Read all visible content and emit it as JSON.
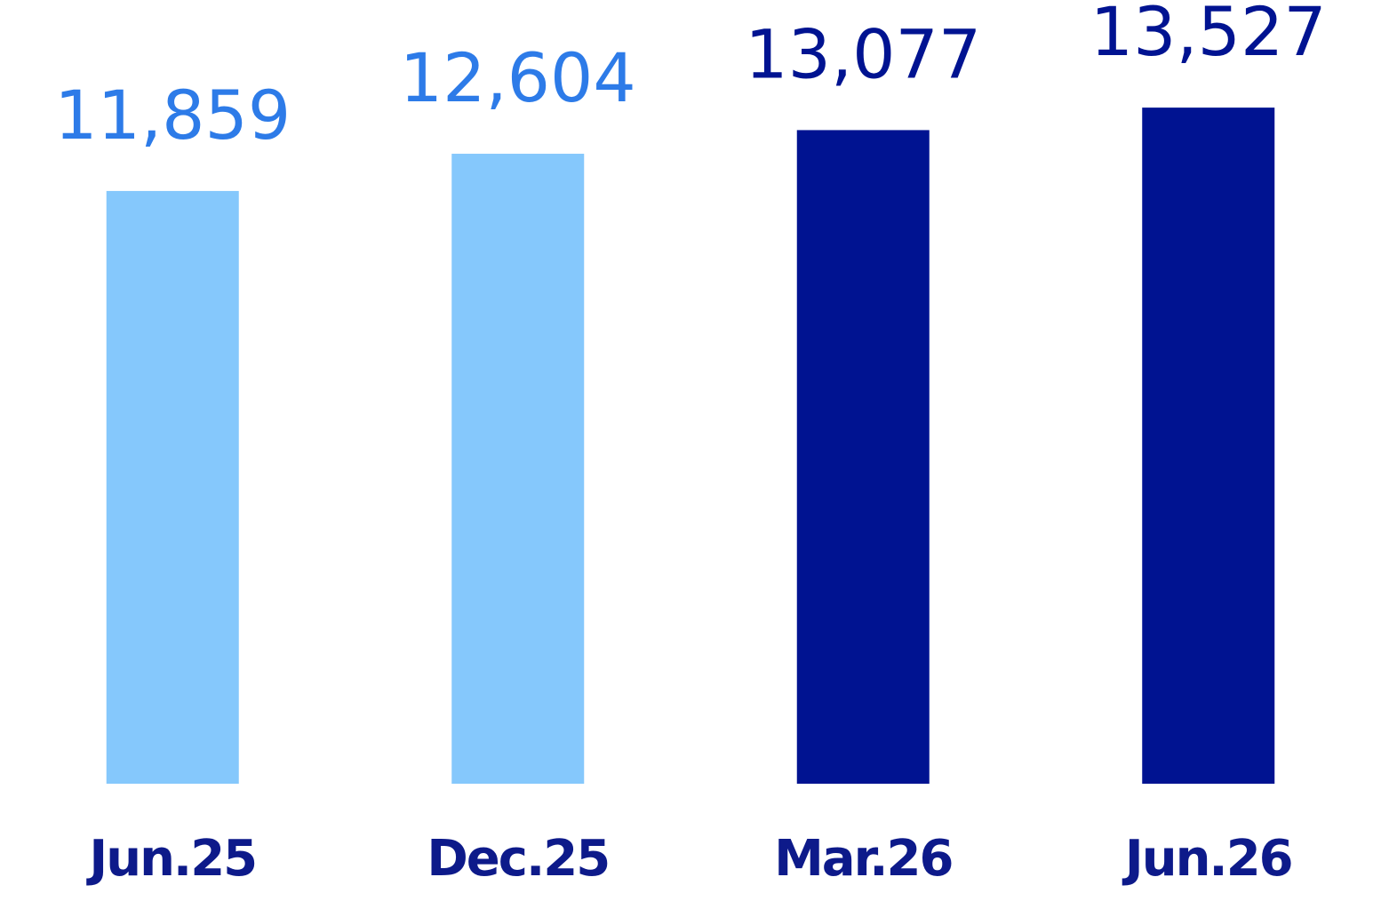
{
  "chart_data": {
    "type": "bar",
    "categories": [
      "Jun.25",
      "Dec.25",
      "Mar.26",
      "Jun.26"
    ],
    "values": [
      11859,
      12604,
      13077,
      13527
    ],
    "value_labels": [
      "11,859",
      "12,604",
      "13,077",
      "13,527"
    ],
    "colors": [
      "#85c8fc",
      "#85c8fc",
      "#001391",
      "#001391"
    ],
    "label_colors": [
      "#2d7be8",
      "#2d7be8",
      "#001391",
      "#001391"
    ],
    "category_color": "#0d1a8a"
  }
}
